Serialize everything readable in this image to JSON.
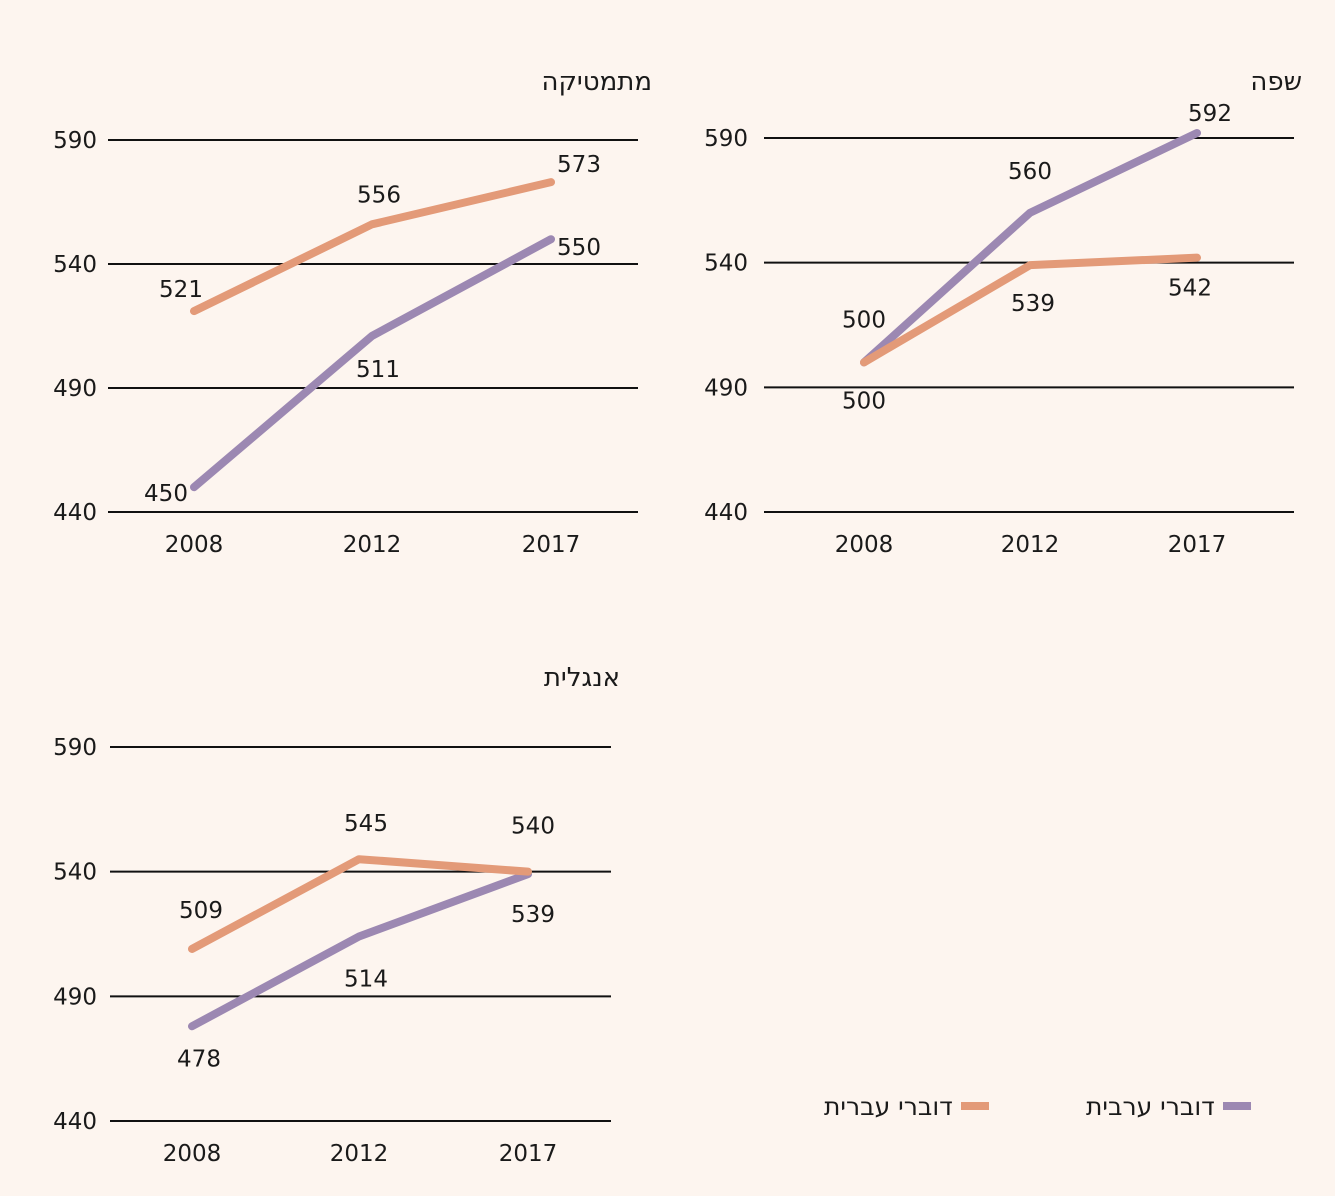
{
  "colors": {
    "hebrew": "#e39a78",
    "arabic": "#9c88b2",
    "grid": "#111111",
    "text": "#1a1a1a"
  },
  "legend": {
    "hebrew": "דוברי עברית",
    "arabic": "דוברי ערבית"
  },
  "chart_data": [
    {
      "type": "line",
      "title": "שפה",
      "categories": [
        "2008",
        "2012",
        "2017"
      ],
      "yticks": [
        "590",
        "540",
        "490",
        "440"
      ],
      "ylim": [
        440,
        590
      ],
      "series": [
        {
          "name": "דוברי ערבית",
          "color": "arabic",
          "values": [
            500,
            560,
            592
          ],
          "labels": [
            "500",
            "560",
            "592"
          ]
        },
        {
          "name": "דוברי עברית",
          "color": "hebrew",
          "values": [
            500,
            539,
            542
          ],
          "labels": [
            "500",
            "539",
            "542"
          ]
        }
      ]
    },
    {
      "type": "line",
      "title": "מתמטיקה",
      "categories": [
        "2008",
        "2012",
        "2017"
      ],
      "yticks": [
        "590",
        "540",
        "490",
        "440"
      ],
      "ylim": [
        440,
        590
      ],
      "series": [
        {
          "name": "דוברי ערבית",
          "color": "arabic",
          "values": [
            450,
            511,
            550
          ],
          "labels": [
            "450",
            "511",
            "550"
          ]
        },
        {
          "name": "דוברי עברית",
          "color": "hebrew",
          "values": [
            521,
            556,
            573
          ],
          "labels": [
            "521",
            "556",
            "573"
          ]
        }
      ]
    },
    {
      "type": "line",
      "title": "אנגלית",
      "categories": [
        "2008",
        "2012",
        "2017"
      ],
      "yticks": [
        "590",
        "540",
        "490",
        "440"
      ],
      "ylim": [
        440,
        590
      ],
      "series": [
        {
          "name": "דוברי ערבית",
          "color": "arabic",
          "values": [
            478,
            514,
            539
          ],
          "labels": [
            "478",
            "514",
            "539"
          ]
        },
        {
          "name": "דוברי עברית",
          "color": "hebrew",
          "values": [
            509,
            545,
            540
          ],
          "labels": [
            "509",
            "545",
            "540"
          ]
        }
      ]
    }
  ]
}
